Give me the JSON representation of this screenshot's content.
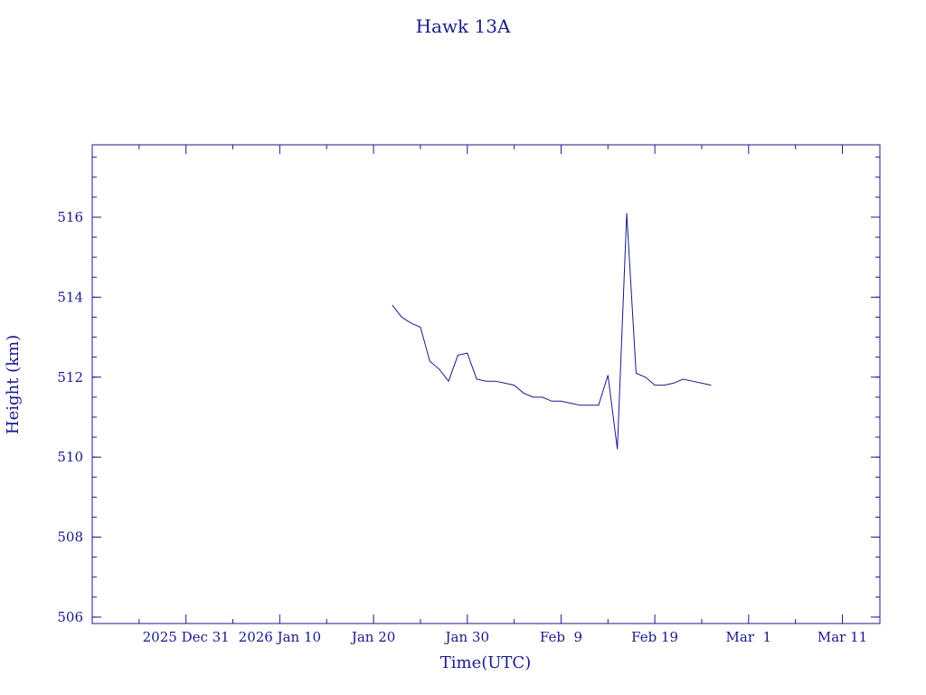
{
  "chart_data": {
    "type": "line",
    "title": "Hawk 13A",
    "x_label": "Time(UTC)",
    "y_label": "Height (km)",
    "x": [
      "2026-01-22",
      "2026-01-23",
      "2026-01-24",
      "2026-01-25",
      "2026-01-26",
      "2026-01-27",
      "2026-01-28",
      "2026-01-29",
      "2026-01-30",
      "2026-01-31",
      "2026-02-01",
      "2026-02-02",
      "2026-02-03",
      "2026-02-04",
      "2026-02-05",
      "2026-02-06",
      "2026-02-07",
      "2026-02-08",
      "2026-02-09",
      "2026-02-10",
      "2026-02-11",
      "2026-02-12",
      "2026-02-13",
      "2026-02-14",
      "2026-02-15",
      "2026-02-16",
      "2026-02-17",
      "2026-02-18",
      "2026-02-19",
      "2026-02-20",
      "2026-02-21",
      "2026-02-22",
      "2026-02-23",
      "2026-02-24",
      "2026-02-25"
    ],
    "series": [
      {
        "color": "#1a1a8c",
        "values": [
          513.8,
          513.5,
          513.35,
          513.25,
          512.4,
          512.2,
          511.9,
          512.55,
          512.6,
          511.95,
          511.9,
          511.9,
          511.85,
          511.8,
          511.6,
          511.5,
          511.5,
          511.4,
          511.4,
          511.35,
          511.3,
          511.3,
          511.3,
          512.05,
          510.2,
          516.1,
          512.1,
          512.0,
          511.8,
          511.8,
          511.85,
          511.95,
          511.9,
          511.85,
          511.8
        ]
      }
    ],
    "xlim": [
      "2025-12-21",
      "2026-03-15"
    ],
    "xticks": [
      {
        "value": "2025-12-31",
        "label": "2025 Dec 31"
      },
      {
        "value": "2026-01-10",
        "label": "2026 Jan 10"
      },
      {
        "value": "2026-01-20",
        "label": "Jan 20"
      },
      {
        "value": "2026-01-30",
        "label": "Jan 30"
      },
      {
        "value": "2026-02-09",
        "label": "Feb  9"
      },
      {
        "value": "2026-02-19",
        "label": "Feb 19"
      },
      {
        "value": "2026-03-01",
        "label": "Mar  1"
      },
      {
        "value": "2026-03-11",
        "label": "Mar 11"
      }
    ],
    "ylim": [
      505.84,
      517.81
    ],
    "yticks": [
      506,
      508,
      510,
      512,
      514,
      516
    ]
  }
}
